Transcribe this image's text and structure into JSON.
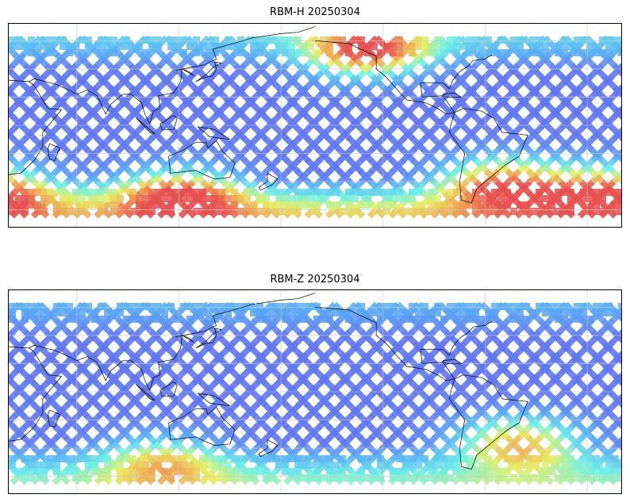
{
  "panels": [
    {
      "title": "RBM-H 20250304",
      "high_lat_intensity": {
        "north": 0.55,
        "south": 0.95
      },
      "hotspots": [
        {
          "lon": -130,
          "lat": 55,
          "value": 0.98
        },
        {
          "lon": -50,
          "lat": -40,
          "value": 0.92
        },
        {
          "lon": 120,
          "lat": -48,
          "value": 0.9
        },
        {
          "lon": 10,
          "lat": -45,
          "value": 0.85
        }
      ]
    },
    {
      "title": "RBM-Z 20250304",
      "high_lat_intensity": {
        "north": 0.35,
        "south": 0.6
      },
      "hotspots": [
        {
          "lon": -40,
          "lat": -35,
          "value": 0.75
        },
        {
          "lon": 110,
          "lat": -48,
          "value": 0.55
        }
      ]
    }
  ],
  "colors": {
    "low": "#6464ee",
    "mid_low": "#5ab0f5",
    "mid": "#6ef0e6",
    "mid_high": "#e6f064",
    "high": "#f0a050",
    "max": "#e65050",
    "coast": "#000000",
    "grid": "#c8c8c8"
  }
}
